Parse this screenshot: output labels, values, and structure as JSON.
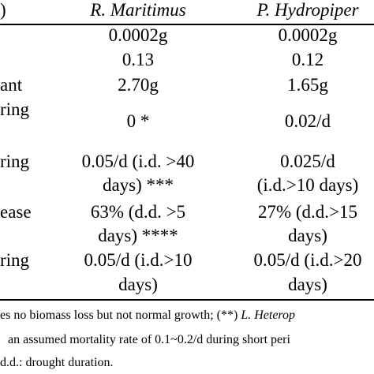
{
  "header": {
    "col0": ")",
    "col1": "R. Maritimus",
    "col2": "P. Hydropiper"
  },
  "rows": [
    {
      "label": "",
      "c1": "0.0002g",
      "c2": "0.0002g"
    },
    {
      "label": "",
      "c1": "0.13",
      "c2": "0.12"
    },
    {
      "label": "ant",
      "c1": "2.70g",
      "c2": "1.65g"
    },
    {
      "label": "ring",
      "c1": "0 *",
      "c2": "0.02/d"
    },
    {
      "label": "ring",
      "c1a": "0.05/d (i.d. >40",
      "c1b": "days) ***",
      "c2a": "0.025/d",
      "c2b": "(i.d.>10 days)"
    },
    {
      "label": "ease",
      "c1a": "63% (d.d. >5",
      "c1b": "days) ****",
      "c2a": "27% (d.d.>15",
      "c2b": "days)"
    },
    {
      "label": "ring",
      "c1a": "0.05/d (i.d.>10",
      "c1b": "days)",
      "c2a": "0.05/d (i.d.>20",
      "c2b": "days)"
    }
  ],
  "notes": {
    "line1_a": "es no biomass loss but not normal growth; (**) ",
    "line1_b": "L. Heterop",
    "line2": "an assumed mortality rate of 0.1~0.2/d during short peri",
    "line3": "d.d.: drought duration."
  }
}
